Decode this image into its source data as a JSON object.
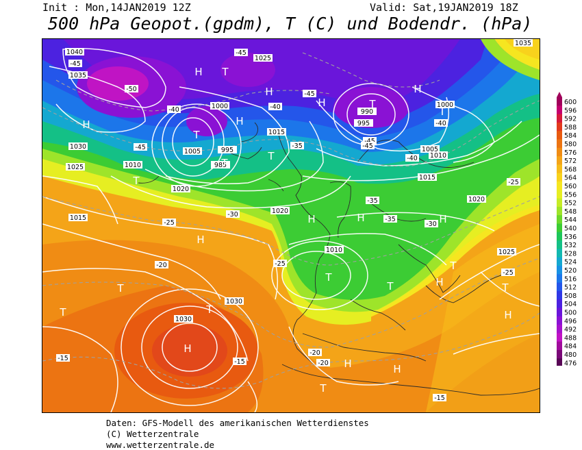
{
  "header": {
    "init": "Init : Mon,14JAN2019 12Z",
    "valid": "Valid: Sat,19JAN2019 18Z",
    "title": "500 hPa Geopot.(gpdm), T (C) und Bodendr. (hPa)"
  },
  "footer": {
    "line1": "Daten: GFS-Modell des amerikanischen Wetterdienstes",
    "line2": "(C) Wetterzentrale",
    "line3": "www.wetterzentrale.de"
  },
  "colorbar": {
    "labels": [
      "600",
      "596",
      "592",
      "588",
      "584",
      "580",
      "576",
      "572",
      "568",
      "564",
      "560",
      "556",
      "552",
      "548",
      "544",
      "540",
      "536",
      "532",
      "528",
      "524",
      "520",
      "516",
      "512",
      "508",
      "504",
      "500",
      "496",
      "492",
      "488",
      "484",
      "480",
      "476"
    ],
    "colors": [
      "#a0005a",
      "#c4006e",
      "#d61a3a",
      "#e23a1e",
      "#e85a10",
      "#ec7412",
      "#f08c14",
      "#f4a418",
      "#f6bc1a",
      "#f8d21c",
      "#f6e620",
      "#e6ee22",
      "#c6ec26",
      "#9ee42a",
      "#6cd82c",
      "#3ccc34",
      "#1ec65a",
      "#14c086",
      "#12b8b0",
      "#14a8d0",
      "#1892e4",
      "#1c76ea",
      "#2456ea",
      "#3038e6",
      "#4c22e0",
      "#6a16da",
      "#8a12d4",
      "#a612cc",
      "#c014c4",
      "#a00c9c",
      "#7a0878",
      "#580656"
    ]
  },
  "pressure_labels": [
    "1040",
    "1035",
    "1030",
    "1025",
    "1020",
    "1015",
    "1010",
    "1005",
    "1000",
    "995",
    "990",
    "985",
    "1030",
    "1025",
    "1020",
    "1015",
    "1010",
    "1005",
    "1000",
    "995",
    "1010",
    "1015",
    "1020",
    "1025",
    "1030",
    "1035"
  ],
  "temperature_labels": [
    "-45",
    "-45",
    "-50",
    "-45",
    "-40",
    "-45",
    "-40",
    "-35",
    "-45",
    "-40",
    "-35",
    "-30",
    "-25",
    "-20",
    "-15",
    "-25",
    "-30",
    "-35",
    "-40",
    "-45",
    "-25",
    "-20",
    "-15",
    "-15",
    "-20",
    "-25"
  ],
  "centers": [
    "H",
    "T",
    "H",
    "T",
    "T",
    "H",
    "H",
    "T",
    "T",
    "H",
    "T",
    "H",
    "H",
    "T",
    "T",
    "H",
    "T",
    "H",
    "H",
    "T",
    "T",
    "T",
    "H",
    "H",
    "T",
    "H",
    "H",
    "T",
    "T",
    "H"
  ],
  "chart_data": {
    "type": "map",
    "title": "500 hPa Geopot.(gpdm), T (C) und Bodendr. (hPa)",
    "init": "Mon,14JAN2019 12Z",
    "valid": "Sat,19JAN2019 18Z",
    "legend_unit": "gpdm",
    "legend_range": [
      476,
      600
    ],
    "legend_step": 4
  }
}
